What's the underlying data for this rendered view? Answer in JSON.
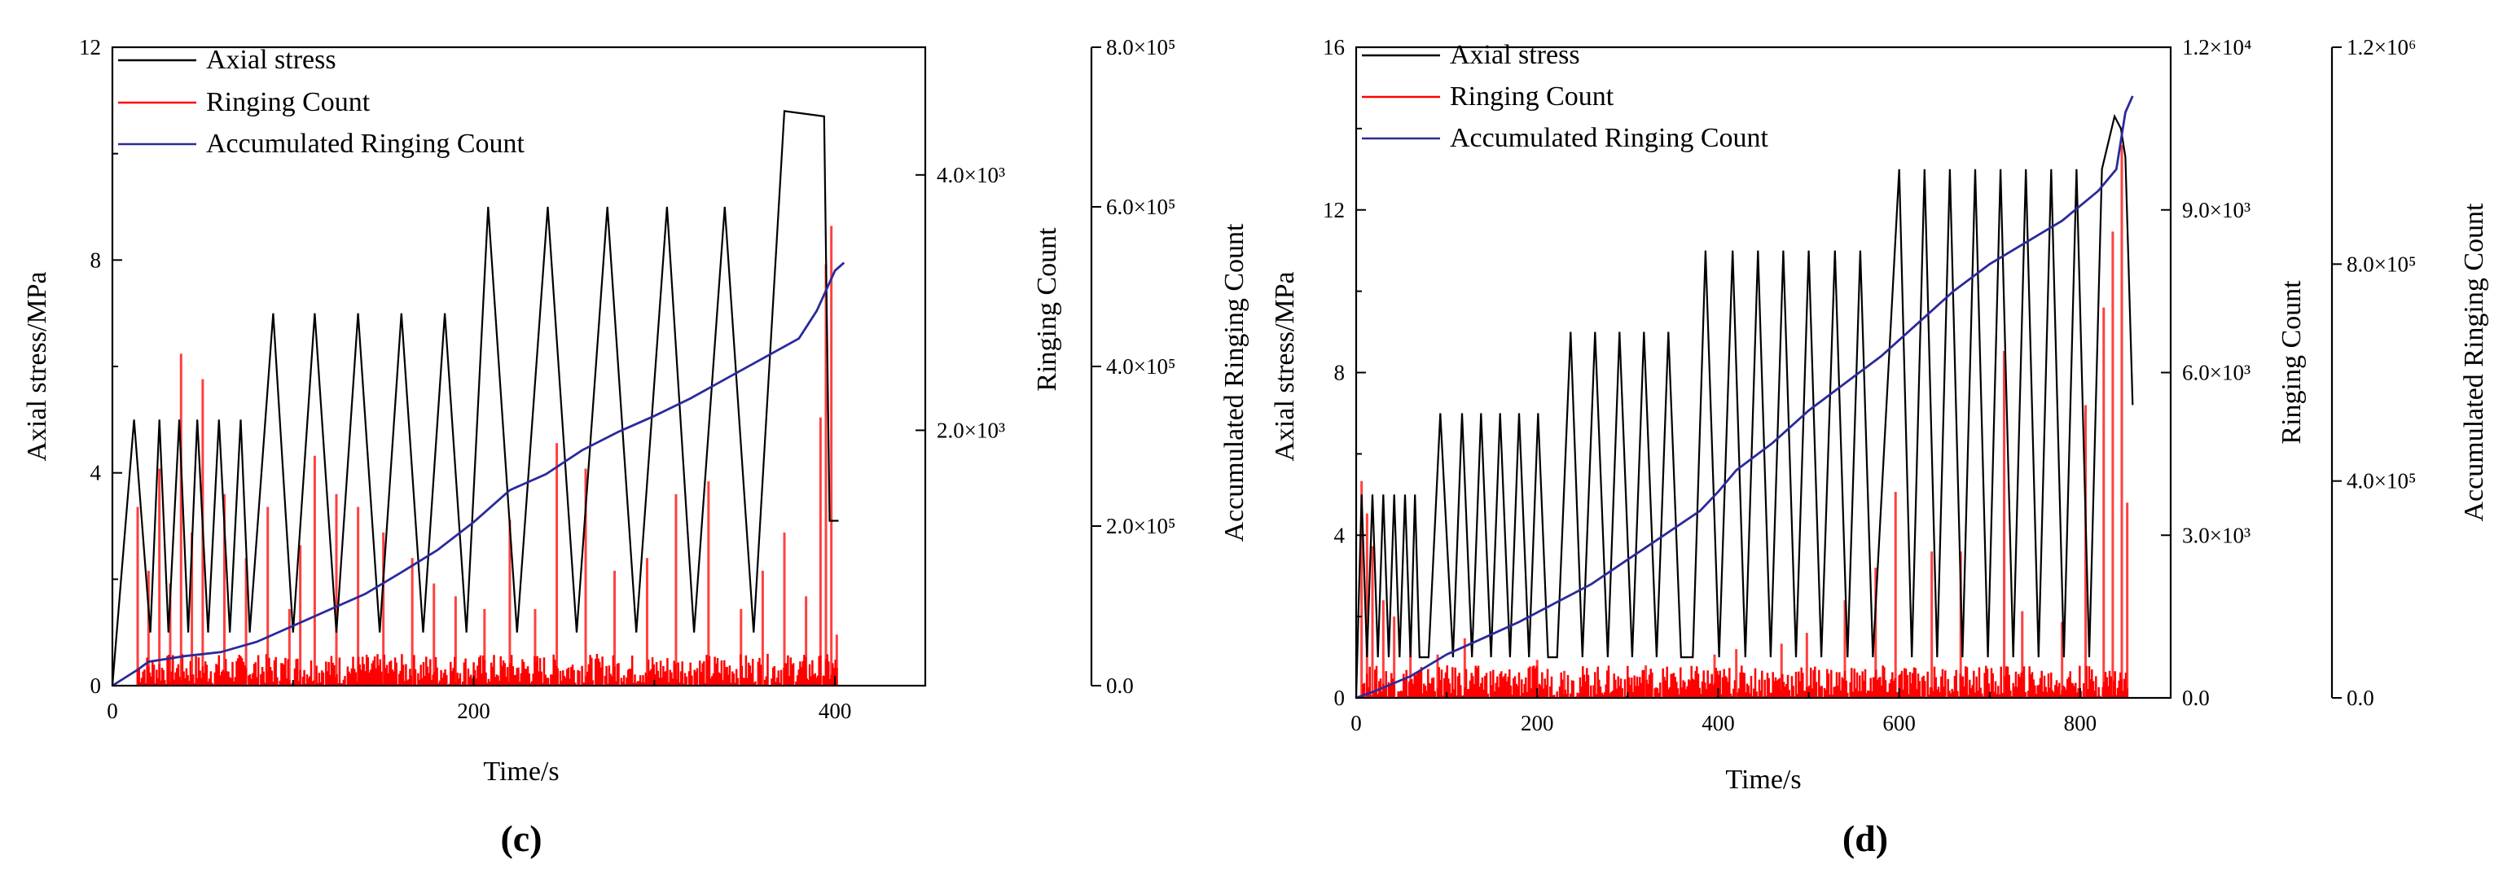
{
  "chart_data": [
    {
      "type": "line",
      "panel_label": "(c)",
      "x": {
        "label": "Time/s",
        "lim": [
          0,
          450
        ],
        "ticks": [
          "0",
          "200",
          "400"
        ],
        "tick_values": [
          0,
          200,
          400
        ]
      },
      "y_left": {
        "label": "Axial stress/MPa",
        "lim": [
          0,
          12
        ],
        "ticks": [
          "0",
          "4",
          "8",
          "12"
        ],
        "tick_values": [
          0,
          4,
          8,
          12
        ]
      },
      "y_right1": {
        "label": "Ringing Count",
        "lim": [
          0,
          5000
        ],
        "ticks": [
          "2.0×10³",
          "4.0×10³"
        ],
        "tick_values": [
          2000,
          4000
        ]
      },
      "y_right2": {
        "label": "Accumulated Ringing Count",
        "lim": [
          0,
          800000
        ],
        "ticks": [
          "0.0",
          "2.0×10⁵",
          "4.0×10⁵",
          "6.0×10⁵",
          "8.0×10⁵"
        ],
        "tick_values": [
          0,
          200000,
          400000,
          600000,
          800000
        ]
      },
      "legend": [
        "Axial stress",
        "Ringing Count",
        "Accumulated Ringing Count"
      ],
      "legend_position": "top-left",
      "colors": {
        "axial": "#000000",
        "ringing": "#ff0000",
        "accumulated": "#2a2a9a"
      },
      "axial_stress": {
        "x": [
          0,
          12,
          21,
          26,
          31,
          37,
          42,
          47,
          53,
          59,
          65,
          71,
          76,
          89,
          100,
          112,
          124,
          136,
          148,
          160,
          172,
          184,
          196,
          208,
          224,
          241,
          257,
          274,
          290,
          307,
          322,
          339,
          355,
          372,
          394,
          397,
          402
        ],
        "y": [
          0,
          5,
          1,
          5,
          1,
          5,
          1,
          5,
          1,
          5,
          1,
          5,
          1,
          7,
          1,
          7,
          1,
          7,
          1,
          7,
          1,
          7,
          1,
          9,
          1,
          9,
          1,
          9,
          1,
          9,
          1,
          9,
          1,
          10.8,
          10.7,
          3.1,
          3.1
        ]
      },
      "ringing_count": {
        "x": [
          14,
          20,
          26,
          32,
          38,
          44,
          50,
          62,
          74,
          86,
          98,
          104,
          112,
          124,
          136,
          150,
          166,
          178,
          190,
          206,
          220,
          234,
          246,
          262,
          278,
          296,
          312,
          330,
          348,
          360,
          372,
          384,
          392,
          395,
          398,
          401
        ],
        "y": [
          1400,
          900,
          1700,
          800,
          2600,
          1200,
          2400,
          1500,
          1000,
          1400,
          600,
          1100,
          1800,
          1500,
          1400,
          1200,
          1000,
          800,
          700,
          600,
          1300,
          600,
          1900,
          1700,
          900,
          1000,
          1500,
          1600,
          600,
          900,
          1200,
          700,
          2100,
          3300,
          3600,
          400
        ]
      },
      "accumulated": {
        "x": [
          0,
          14,
          20,
          40,
          60,
          80,
          100,
          120,
          140,
          160,
          180,
          200,
          220,
          240,
          260,
          280,
          300,
          320,
          340,
          360,
          380,
          390,
          400,
          405
        ],
        "y": [
          0,
          20000,
          30000,
          37000,
          42000,
          55000,
          75000,
          95000,
          115000,
          142000,
          170000,
          205000,
          245000,
          265000,
          295000,
          318000,
          338000,
          360000,
          385000,
          410000,
          435000,
          470000,
          520000,
          530000
        ]
      }
    },
    {
      "type": "line",
      "panel_label": "(d)",
      "x": {
        "label": "Time/s",
        "lim": [
          0,
          900
        ],
        "ticks": [
          "0",
          "200",
          "400",
          "600",
          "800"
        ],
        "tick_values": [
          0,
          200,
          400,
          600,
          800
        ]
      },
      "y_left": {
        "label": "Axial stress/MPa",
        "lim": [
          0,
          16
        ],
        "ticks": [
          "0",
          "4",
          "8",
          "12",
          "16"
        ],
        "tick_values": [
          0,
          4,
          8,
          12,
          16
        ]
      },
      "y_right1": {
        "label": "Ringing Count",
        "lim": [
          0,
          12000
        ],
        "ticks": [
          "0.0",
          "3.0×10³",
          "6.0×10³",
          "9.0×10³",
          "1.2×10⁴"
        ],
        "tick_values": [
          0,
          3000,
          6000,
          9000,
          12000
        ]
      },
      "y_right2": {
        "label": "Accumulated Ringing Count",
        "lim": [
          0,
          1200000
        ],
        "ticks": [
          "0.0",
          "4.0×10⁵",
          "8.0×10⁵",
          "1.2×10⁶"
        ],
        "tick_values": [
          0,
          400000,
          800000,
          1200000
        ]
      },
      "legend": [
        "Axial stress",
        "Ringing Count",
        "Accumulated Ringing Count"
      ],
      "legend_position": "top-left",
      "colors": {
        "axial": "#000000",
        "ringing": "#ff0000",
        "accumulated": "#2a2a9a"
      },
      "axial_stress": {
        "x": [
          0,
          6,
          12,
          18,
          24,
          30,
          36,
          42,
          48,
          54,
          60,
          65,
          70,
          80,
          93,
          107,
          117,
          128,
          138,
          149,
          159,
          170,
          180,
          191,
          201,
          212,
          222,
          237,
          250,
          264,
          278,
          291,
          305,
          318,
          332,
          345,
          359,
          372,
          386,
          401,
          416,
          430,
          444,
          458,
          472,
          486,
          500,
          514,
          529,
          543,
          557,
          571,
          600,
          614,
          628,
          642,
          656,
          670,
          684,
          698,
          712,
          726,
          740,
          754,
          768,
          782,
          796,
          810,
          824,
          838,
          845,
          850,
          858
        ],
        "y": [
          0,
          5,
          1,
          5,
          1,
          5,
          1,
          5,
          1,
          5,
          1,
          5,
          1,
          1,
          7,
          1,
          7,
          1,
          7,
          1,
          7,
          1,
          7,
          1,
          7,
          1,
          1,
          9,
          1,
          9,
          1,
          9,
          1,
          9,
          1,
          9,
          1,
          1,
          11,
          1,
          11,
          1,
          11,
          1,
          11,
          1,
          11,
          1,
          11,
          1,
          11,
          1,
          13,
          1,
          13,
          1,
          13,
          1,
          13,
          1,
          13,
          1,
          13,
          1,
          13,
          1,
          13,
          1,
          13,
          14.3,
          14,
          13.3,
          7.2
        ]
      },
      "ringing_count": {
        "x": [
          6,
          12,
          18,
          30,
          42,
          60,
          90,
          120,
          200,
          230,
          320,
          396,
          420,
          470,
          498,
          540,
          574,
          596,
          636,
          668,
          716,
          736,
          780,
          806,
          826,
          836,
          846,
          852
        ],
        "y": [
          4000,
          3400,
          2800,
          1800,
          1500,
          1200,
          800,
          1100,
          700,
          500,
          600,
          800,
          900,
          1000,
          1200,
          1800,
          2400,
          3800,
          2700,
          2700,
          6400,
          1600,
          1400,
          5400,
          7200,
          8600,
          10200,
          3600
        ]
      },
      "accumulated": {
        "x": [
          0,
          20,
          60,
          100,
          140,
          180,
          220,
          260,
          300,
          340,
          380,
          400,
          420,
          460,
          500,
          540,
          580,
          620,
          660,
          700,
          740,
          780,
          820,
          840,
          850,
          858
        ],
        "y": [
          0,
          12000,
          40000,
          80000,
          110000,
          140000,
          175000,
          210000,
          255000,
          300000,
          345000,
          380000,
          420000,
          470000,
          530000,
          580000,
          630000,
          690000,
          750000,
          800000,
          840000,
          880000,
          935000,
          975000,
          1080000,
          1110000
        ]
      }
    }
  ]
}
